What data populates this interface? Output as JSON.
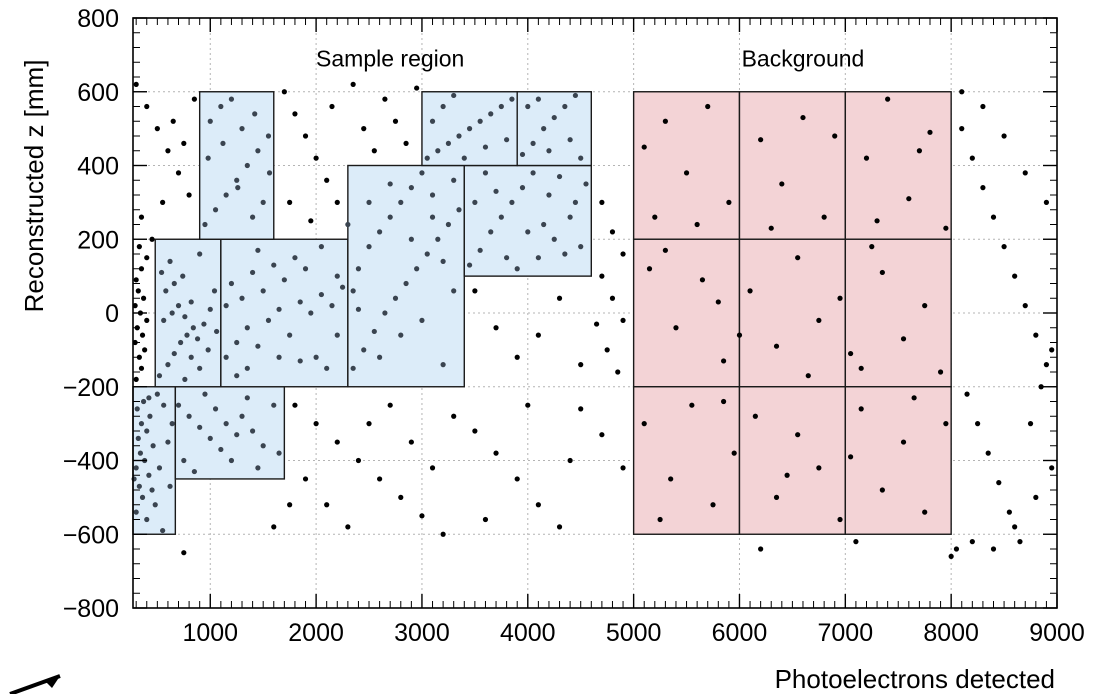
{
  "chart_data": {
    "type": "scatter",
    "title": "",
    "xlabel": "Photoelectrons detected",
    "ylabel": "Reconstructed z [mm]",
    "xlim": [
      270,
      9000
    ],
    "ylim": [
      -800,
      800
    ],
    "xticks": [
      1000,
      2000,
      3000,
      4000,
      5000,
      6000,
      7000,
      8000,
      9000
    ],
    "xtick_labels": [
      "1000",
      "2000",
      "3000",
      "4000",
      "5000",
      "6000",
      "7000",
      "8000",
      "9000"
    ],
    "yticks": [
      -800,
      -600,
      -400,
      -200,
      0,
      200,
      400,
      600,
      800
    ],
    "ytick_labels": [
      "−800",
      "−600",
      "−400",
      "−200",
      "0",
      "200",
      "400",
      "600",
      "800"
    ],
    "grid": true,
    "region_labels": [
      {
        "text": "Sample region",
        "x": 2700,
        "y": 690
      },
      {
        "text": "Background",
        "x": 6600,
        "y": 690
      }
    ],
    "sample_bins": [
      {
        "x0": 270,
        "x1": 670,
        "y0": -600,
        "y1": -200
      },
      {
        "x0": 670,
        "x1": 1700,
        "y0": -450,
        "y1": -200
      },
      {
        "x0": 480,
        "x1": 1100,
        "y0": -200,
        "y1": 200
      },
      {
        "x0": 1100,
        "x1": 2300,
        "y0": -200,
        "y1": 200
      },
      {
        "x0": 2300,
        "x1": 3400,
        "y0": -200,
        "y1": 400
      },
      {
        "x0": 900,
        "x1": 1600,
        "y0": 200,
        "y1": 600
      },
      {
        "x0": 3400,
        "x1": 4600,
        "y0": 100,
        "y1": 400
      },
      {
        "x0": 3000,
        "x1": 3900,
        "y0": 400,
        "y1": 600
      },
      {
        "x0": 3900,
        "x1": 4600,
        "y0": 400,
        "y1": 600
      }
    ],
    "background_bins": [
      {
        "x0": 5000,
        "x1": 6000,
        "y0": 200,
        "y1": 600
      },
      {
        "x0": 6000,
        "x1": 7000,
        "y0": 200,
        "y1": 600
      },
      {
        "x0": 7000,
        "x1": 8000,
        "y0": 200,
        "y1": 600
      },
      {
        "x0": 5000,
        "x1": 6000,
        "y0": -200,
        "y1": 200
      },
      {
        "x0": 6000,
        "x1": 7000,
        "y0": -200,
        "y1": 200
      },
      {
        "x0": 7000,
        "x1": 8000,
        "y0": -200,
        "y1": 200
      },
      {
        "x0": 5000,
        "x1": 6000,
        "y0": -600,
        "y1": -200
      },
      {
        "x0": 6000,
        "x1": 7000,
        "y0": -600,
        "y1": -200
      },
      {
        "x0": 7000,
        "x1": 8000,
        "y0": -600,
        "y1": -200
      }
    ],
    "colors": {
      "sample_fill": "#dcecf9",
      "background_fill": "#f3d3d6",
      "bin_edge": "#1a1a1a",
      "point": "#000000",
      "point_dense": "#3a4450",
      "grid": "#b4b4b4"
    },
    "points": [
      [
        400,
        -560
      ],
      [
        300,
        -540
      ],
      [
        360,
        -500
      ],
      [
        330,
        -470
      ],
      [
        420,
        -440
      ],
      [
        300,
        -420
      ],
      [
        380,
        -400
      ],
      [
        340,
        -380
      ],
      [
        460,
        -360
      ],
      [
        320,
        -340
      ],
      [
        400,
        -320
      ],
      [
        350,
        -300
      ],
      [
        430,
        -280
      ],
      [
        310,
        -260
      ],
      [
        370,
        -240
      ],
      [
        420,
        -230
      ],
      [
        500,
        -220
      ],
      [
        560,
        -250
      ],
      [
        640,
        -300
      ],
      [
        600,
        -350
      ],
      [
        520,
        -420
      ],
      [
        620,
        -470
      ],
      [
        480,
        -520
      ],
      [
        550,
        -590
      ],
      [
        280,
        -450
      ],
      [
        450,
        -480
      ],
      [
        300,
        -180
      ],
      [
        350,
        -150
      ],
      [
        330,
        -120
      ],
      [
        380,
        -100
      ],
      [
        290,
        -80
      ],
      [
        360,
        -60
      ],
      [
        310,
        -40
      ],
      [
        400,
        -20
      ],
      [
        340,
        0
      ],
      [
        290,
        20
      ],
      [
        370,
        40
      ],
      [
        320,
        60
      ],
      [
        300,
        90
      ],
      [
        350,
        120
      ],
      [
        400,
        150
      ],
      [
        330,
        180
      ],
      [
        520,
        -170
      ],
      [
        600,
        -140
      ],
      [
        660,
        -110
      ],
      [
        720,
        -80
      ],
      [
        780,
        -60
      ],
      [
        840,
        -40
      ],
      [
        560,
        -20
      ],
      [
        640,
        0
      ],
      [
        700,
        20
      ],
      [
        760,
        -10
      ],
      [
        820,
        30
      ],
      [
        880,
        -70
      ],
      [
        940,
        -30
      ],
      [
        1000,
        10
      ],
      [
        1060,
        -50
      ],
      [
        580,
        60
      ],
      [
        660,
        80
      ],
      [
        740,
        100
      ],
      [
        820,
        -120
      ],
      [
        900,
        -150
      ],
      [
        980,
        -100
      ],
      [
        1040,
        60
      ],
      [
        620,
        140
      ],
      [
        900,
        160
      ],
      [
        760,
        -180
      ],
      [
        540,
        110
      ],
      [
        1150,
        -120
      ],
      [
        1250,
        -80
      ],
      [
        1350,
        -40
      ],
      [
        1450,
        -90
      ],
      [
        1550,
        -20
      ],
      [
        1650,
        10
      ],
      [
        1750,
        -60
      ],
      [
        1850,
        30
      ],
      [
        1950,
        0
      ],
      [
        2050,
        50
      ],
      [
        2150,
        20
      ],
      [
        2250,
        70
      ],
      [
        1200,
        80
      ],
      [
        1300,
        40
      ],
      [
        1400,
        110
      ],
      [
        1500,
        60
      ],
      [
        1600,
        130
      ],
      [
        1700,
        90
      ],
      [
        1800,
        150
      ],
      [
        1900,
        120
      ],
      [
        2000,
        -120
      ],
      [
        2100,
        -150
      ],
      [
        2200,
        -60
      ],
      [
        1250,
        -170
      ],
      [
        1450,
        170
      ],
      [
        1850,
        -130
      ],
      [
        2050,
        180
      ],
      [
        1150,
        20
      ],
      [
        1350,
        -150
      ],
      [
        1650,
        -120
      ],
      [
        2200,
        100
      ],
      [
        2350,
        -150
      ],
      [
        2450,
        -100
      ],
      [
        2550,
        -50
      ],
      [
        2650,
        0
      ],
      [
        2750,
        40
      ],
      [
        2850,
        80
      ],
      [
        2950,
        120
      ],
      [
        3050,
        160
      ],
      [
        3150,
        200
      ],
      [
        3250,
        240
      ],
      [
        3350,
        280
      ],
      [
        2400,
        120
      ],
      [
        2500,
        180
      ],
      [
        2600,
        220
      ],
      [
        2700,
        260
      ],
      [
        2800,
        300
      ],
      [
        2900,
        340
      ],
      [
        3000,
        380
      ],
      [
        3100,
        320
      ],
      [
        3200,
        140
      ],
      [
        3300,
        60
      ],
      [
        2400,
        10
      ],
      [
        2600,
        -120
      ],
      [
        2800,
        -60
      ],
      [
        3000,
        -20
      ],
      [
        3200,
        -140
      ],
      [
        2500,
        300
      ],
      [
        2700,
        350
      ],
      [
        2900,
        200
      ],
      [
        3100,
        260
      ],
      [
        3300,
        360
      ],
      [
        2350,
        60
      ],
      [
        950,
        240
      ],
      [
        1050,
        280
      ],
      [
        1150,
        320
      ],
      [
        1250,
        360
      ],
      [
        1350,
        400
      ],
      [
        1450,
        440
      ],
      [
        1550,
        480
      ],
      [
        1000,
        520
      ],
      [
        1100,
        560
      ],
      [
        1200,
        580
      ],
      [
        1300,
        500
      ],
      [
        1400,
        260
      ],
      [
        1500,
        300
      ],
      [
        980,
        420
      ],
      [
        1120,
        460
      ],
      [
        1260,
        340
      ],
      [
        1420,
        540
      ],
      [
        1560,
        380
      ],
      [
        3450,
        130
      ],
      [
        3550,
        170
      ],
      [
        3650,
        220
      ],
      [
        3750,
        260
      ],
      [
        3850,
        300
      ],
      [
        3950,
        340
      ],
      [
        4050,
        380
      ],
      [
        4150,
        240
      ],
      [
        4250,
        200
      ],
      [
        4350,
        160
      ],
      [
        4450,
        300
      ],
      [
        4550,
        350
      ],
      [
        3600,
        380
      ],
      [
        3800,
        150
      ],
      [
        4000,
        220
      ],
      [
        4200,
        320
      ],
      [
        4400,
        260
      ],
      [
        3500,
        300
      ],
      [
        3700,
        330
      ],
      [
        3900,
        120
      ],
      [
        4100,
        150
      ],
      [
        4300,
        370
      ],
      [
        4500,
        180
      ],
      [
        3050,
        420
      ],
      [
        3150,
        440
      ],
      [
        3250,
        460
      ],
      [
        3350,
        480
      ],
      [
        3450,
        500
      ],
      [
        3550,
        520
      ],
      [
        3650,
        540
      ],
      [
        3750,
        560
      ],
      [
        3850,
        580
      ],
      [
        3100,
        520
      ],
      [
        3200,
        560
      ],
      [
        3400,
        420
      ],
      [
        3600,
        450
      ],
      [
        3800,
        470
      ],
      [
        3300,
        590
      ],
      [
        3950,
        430
      ],
      [
        4050,
        460
      ],
      [
        4150,
        500
      ],
      [
        4250,
        530
      ],
      [
        4350,
        560
      ],
      [
        4450,
        590
      ],
      [
        4000,
        560
      ],
      [
        4200,
        440
      ],
      [
        4400,
        470
      ],
      [
        4500,
        420
      ],
      [
        4100,
        580
      ],
      [
        700,
        -250
      ],
      [
        800,
        -280
      ],
      [
        900,
        -310
      ],
      [
        1000,
        -340
      ],
      [
        1100,
        -370
      ],
      [
        1200,
        -400
      ],
      [
        1300,
        -280
      ],
      [
        1400,
        -320
      ],
      [
        1500,
        -360
      ],
      [
        1600,
        -250
      ],
      [
        750,
        -400
      ],
      [
        850,
        -430
      ],
      [
        1050,
        -260
      ],
      [
        1250,
        -330
      ],
      [
        1450,
        -420
      ],
      [
        1650,
        -380
      ],
      [
        950,
        -220
      ],
      [
        1150,
        -300
      ],
      [
        1350,
        -230
      ],
      [
        5100,
        450
      ],
      [
        5300,
        520
      ],
      [
        5500,
        380
      ],
      [
        5700,
        560
      ],
      [
        5900,
        300
      ],
      [
        6200,
        470
      ],
      [
        6400,
        350
      ],
      [
        6600,
        530
      ],
      [
        6800,
        260
      ],
      [
        7200,
        420
      ],
      [
        7400,
        580
      ],
      [
        7600,
        310
      ],
      [
        7800,
        490
      ],
      [
        7950,
        230
      ],
      [
        5200,
        260
      ],
      [
        5600,
        240
      ],
      [
        6300,
        230
      ],
      [
        6900,
        480
      ],
      [
        7300,
        250
      ],
      [
        7700,
        440
      ],
      [
        5150,
        120
      ],
      [
        5400,
        -40
      ],
      [
        5650,
        90
      ],
      [
        5850,
        -130
      ],
      [
        6100,
        60
      ],
      [
        6350,
        -90
      ],
      [
        6550,
        150
      ],
      [
        6750,
        -20
      ],
      [
        6950,
        40
      ],
      [
        7150,
        -150
      ],
      [
        7350,
        110
      ],
      [
        7550,
        -70
      ],
      [
        7750,
        20
      ],
      [
        7900,
        -160
      ],
      [
        5300,
        170
      ],
      [
        6000,
        -60
      ],
      [
        6650,
        -170
      ],
      [
        7250,
        180
      ],
      [
        5800,
        30
      ],
      [
        7050,
        -110
      ],
      [
        5100,
        -300
      ],
      [
        5350,
        -450
      ],
      [
        5550,
        -250
      ],
      [
        5750,
        -520
      ],
      [
        5950,
        -380
      ],
      [
        6150,
        -280
      ],
      [
        6350,
        -500
      ],
      [
        6550,
        -330
      ],
      [
        6750,
        -420
      ],
      [
        6950,
        -560
      ],
      [
        7150,
        -260
      ],
      [
        7350,
        -480
      ],
      [
        7550,
        -350
      ],
      [
        7750,
        -540
      ],
      [
        7950,
        -300
      ],
      [
        5250,
        -560
      ],
      [
        5850,
        -240
      ],
      [
        6450,
        -440
      ],
      [
        7050,
        -390
      ],
      [
        7650,
        -230
      ],
      [
        300,
        620
      ],
      [
        400,
        560
      ],
      [
        500,
        500
      ],
      [
        600,
        440
      ],
      [
        700,
        380
      ],
      [
        800,
        320
      ],
      [
        350,
        260
      ],
      [
        450,
        200
      ],
      [
        550,
        300
      ],
      [
        650,
        520
      ],
      [
        750,
        460
      ],
      [
        850,
        580
      ],
      [
        1700,
        600
      ],
      [
        1800,
        540
      ],
      [
        1900,
        480
      ],
      [
        2000,
        420
      ],
      [
        2100,
        360
      ],
      [
        2200,
        300
      ],
      [
        2300,
        240
      ],
      [
        1750,
        300
      ],
      [
        1950,
        250
      ],
      [
        2150,
        560
      ],
      [
        2350,
        620
      ],
      [
        2450,
        500
      ],
      [
        2550,
        440
      ],
      [
        2650,
        580
      ],
      [
        2750,
        520
      ],
      [
        2850,
        460
      ],
      [
        2950,
        610
      ],
      [
        4700,
        300
      ],
      [
        4800,
        220
      ],
      [
        4900,
        160
      ],
      [
        4700,
        100
      ],
      [
        4800,
        40
      ],
      [
        4900,
        -20
      ],
      [
        4750,
        -100
      ],
      [
        4850,
        -160
      ],
      [
        3500,
        60
      ],
      [
        3700,
        -40
      ],
      [
        3900,
        -120
      ],
      [
        4100,
        -60
      ],
      [
        4300,
        40
      ],
      [
        4500,
        -140
      ],
      [
        4650,
        -30
      ],
      [
        1800,
        -250
      ],
      [
        2000,
        -300
      ],
      [
        2200,
        -350
      ],
      [
        2400,
        -400
      ],
      [
        2600,
        -450
      ],
      [
        2800,
        -500
      ],
      [
        3000,
        -550
      ],
      [
        3200,
        -600
      ],
      [
        1900,
        -450
      ],
      [
        2100,
        -520
      ],
      [
        2300,
        -580
      ],
      [
        2500,
        -300
      ],
      [
        2700,
        -250
      ],
      [
        2900,
        -350
      ],
      [
        3100,
        -420
      ],
      [
        3300,
        -280
      ],
      [
        3500,
        -320
      ],
      [
        3700,
        -380
      ],
      [
        3900,
        -450
      ],
      [
        4100,
        -520
      ],
      [
        4300,
        -580
      ],
      [
        4500,
        -260
      ],
      [
        4700,
        -330
      ],
      [
        4900,
        -420
      ],
      [
        3600,
        -560
      ],
      [
        4000,
        -250
      ],
      [
        4400,
        -400
      ],
      [
        1750,
        -520
      ],
      [
        1600,
        -580
      ],
      [
        750,
        -650
      ],
      [
        8100,
        500
      ],
      [
        8200,
        420
      ],
      [
        8300,
        340
      ],
      [
        8400,
        260
      ],
      [
        8500,
        180
      ],
      [
        8600,
        100
      ],
      [
        8700,
        20
      ],
      [
        8800,
        -60
      ],
      [
        8900,
        -140
      ],
      [
        8150,
        -220
      ],
      [
        8250,
        -300
      ],
      [
        8350,
        -380
      ],
      [
        8450,
        -460
      ],
      [
        8550,
        -540
      ],
      [
        8650,
        -620
      ],
      [
        8750,
        -300
      ],
      [
        8850,
        -200
      ],
      [
        8950,
        -100
      ],
      [
        8100,
        600
      ],
      [
        8300,
        560
      ],
      [
        8500,
        480
      ],
      [
        8700,
        380
      ],
      [
        8900,
        300
      ],
      [
        8200,
        -620
      ],
      [
        8400,
        -640
      ],
      [
        8600,
        -580
      ],
      [
        8800,
        -500
      ],
      [
        8950,
        -420
      ],
      [
        8050,
        -640
      ],
      [
        6200,
        -640
      ],
      [
        7100,
        -620
      ],
      [
        8000,
        -660
      ]
    ]
  }
}
